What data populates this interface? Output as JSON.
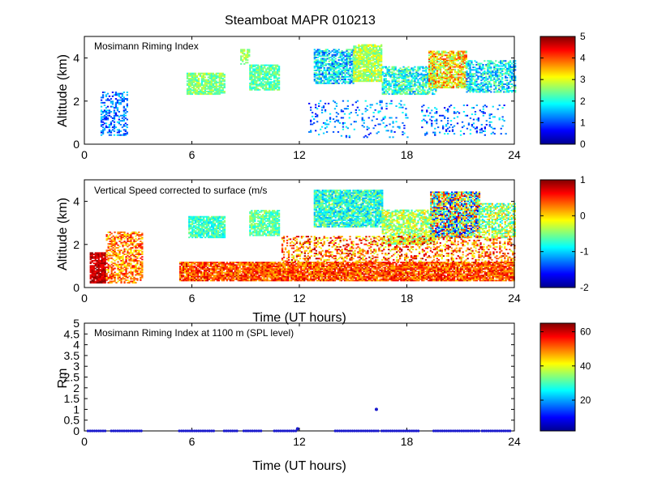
{
  "chart_data": {
    "title": "Steamboat MAPR 010213",
    "panels": [
      {
        "type": "heatmap",
        "annotation": "Mosimann Riming Index",
        "xlabel": "",
        "ylabel": "Altitude (km)",
        "xlim": [
          0,
          24
        ],
        "ylim": [
          0,
          5
        ],
        "xticks": [
          0,
          6,
          12,
          18,
          24
        ],
        "yticks": [
          0,
          2,
          4
        ],
        "colorbar": {
          "min": 0,
          "max": 5,
          "ticks": [
            0,
            1,
            2,
            3,
            4,
            5
          ]
        },
        "regions": [
          {
            "t": [
              0.9,
              2.4
            ],
            "z": [
              0.4,
              2.4
            ],
            "v": [
              0.5,
              1.8
            ],
            "d": 0.35
          },
          {
            "t": [
              5.7,
              7.8
            ],
            "z": [
              2.3,
              3.3
            ],
            "v": [
              2.0,
              3.0
            ],
            "d": 0.85
          },
          {
            "t": [
              9.2,
              10.9
            ],
            "z": [
              2.5,
              3.7
            ],
            "v": [
              1.8,
              2.8
            ],
            "d": 0.8
          },
          {
            "t": [
              8.7,
              9.2
            ],
            "z": [
              3.7,
              4.4
            ],
            "v": [
              2.3,
              3.0
            ],
            "d": 0.6
          },
          {
            "t": [
              12.8,
              15.0
            ],
            "z": [
              2.8,
              4.4
            ],
            "v": [
              0.8,
              2.6
            ],
            "d": 0.7
          },
          {
            "t": [
              15.0,
              16.6
            ],
            "z": [
              2.9,
              4.6
            ],
            "v": [
              2.2,
              3.3
            ],
            "d": 0.85
          },
          {
            "t": [
              16.6,
              19.6
            ],
            "z": [
              2.3,
              3.6
            ],
            "v": [
              1.2,
              2.8
            ],
            "d": 0.65
          },
          {
            "t": [
              19.2,
              21.3
            ],
            "z": [
              2.6,
              4.3
            ],
            "v": [
              2.3,
              4.2
            ],
            "d": 0.75
          },
          {
            "t": [
              21.3,
              24.0
            ],
            "z": [
              2.4,
              3.9
            ],
            "v": [
              1.0,
              2.6
            ],
            "d": 0.6
          },
          {
            "t": [
              12.5,
              18.0
            ],
            "z": [
              0.3,
              2.0
            ],
            "v": [
              0.6,
              2.0
            ],
            "d": 0.12
          },
          {
            "t": [
              18.8,
              23.5
            ],
            "z": [
              0.4,
              1.8
            ],
            "v": [
              0.5,
              2.0
            ],
            "d": 0.14
          }
        ]
      },
      {
        "type": "heatmap",
        "annotation": "Vertical Speed corrected to surface (m/s",
        "xlabel": "Time (UT hours)",
        "ylabel": "Altitude (km)",
        "xlim": [
          0,
          24
        ],
        "ylim": [
          0,
          5
        ],
        "xticks": [
          0,
          6,
          12,
          18,
          24
        ],
        "yticks": [
          0,
          2,
          4
        ],
        "colorbar": {
          "min": -2,
          "max": 1,
          "ticks": [
            1,
            0,
            -1,
            -2
          ]
        },
        "regions": [
          {
            "t": [
              0.3,
              1.2
            ],
            "z": [
              0.2,
              1.6
            ],
            "v": [
              0.6,
              1.0
            ],
            "d": 0.9
          },
          {
            "t": [
              1.2,
              3.2
            ],
            "z": [
              0.2,
              2.6
            ],
            "v": [
              -0.2,
              0.7
            ],
            "d": 0.55
          },
          {
            "t": [
              5.3,
              24.0
            ],
            "z": [
              0.3,
              1.2
            ],
            "v": [
              0.0,
              0.8
            ],
            "d": 0.9
          },
          {
            "t": [
              5.8,
              7.8
            ],
            "z": [
              2.3,
              3.3
            ],
            "v": [
              -1.0,
              -0.4
            ],
            "d": 0.85
          },
          {
            "t": [
              9.2,
              10.9
            ],
            "z": [
              2.4,
              3.6
            ],
            "v": [
              -0.9,
              -0.3
            ],
            "d": 0.8
          },
          {
            "t": [
              12.8,
              16.6
            ],
            "z": [
              2.8,
              4.5
            ],
            "v": [
              -1.2,
              -0.3
            ],
            "d": 0.85
          },
          {
            "t": [
              16.6,
              19.5
            ],
            "z": [
              2.0,
              3.6
            ],
            "v": [
              -0.8,
              0.1
            ],
            "d": 0.7
          },
          {
            "t": [
              19.3,
              22.0
            ],
            "z": [
              2.3,
              4.4
            ],
            "v": [
              -1.8,
              0.7
            ],
            "d": 0.8
          },
          {
            "t": [
              22.0,
              24.0
            ],
            "z": [
              2.3,
              3.9
            ],
            "v": [
              -1.0,
              0.2
            ],
            "d": 0.6
          },
          {
            "t": [
              11.0,
              24.0
            ],
            "z": [
              1.2,
              2.4
            ],
            "v": [
              -0.3,
              0.9
            ],
            "d": 0.35
          }
        ]
      },
      {
        "type": "scatter",
        "annotation": "Mosimann Riming Index at 1100 m (SPL level)",
        "xlabel": "Time (UT hours)",
        "ylabel": "Rm",
        "xlim": [
          0,
          24
        ],
        "ylim": [
          0,
          5
        ],
        "xticks": [
          0,
          6,
          12,
          18,
          24
        ],
        "yticks": [
          0,
          0.5,
          1,
          1.5,
          2,
          2.5,
          3,
          3.5,
          4,
          4.5,
          5
        ],
        "yticklabels": [
          "0",
          "0.5",
          "1",
          "1.5",
          "2",
          "2.5",
          "3",
          "3.5",
          "4",
          "4.5",
          "5"
        ],
        "colorbar": {
          "min": 2,
          "max": 65,
          "ticks": [
            20,
            40,
            60
          ]
        },
        "zero_segments": [
          [
            0.2,
            1.2
          ],
          [
            1.5,
            3.3
          ],
          [
            5.3,
            7.3
          ],
          [
            7.8,
            8.6
          ],
          [
            8.9,
            9.9
          ],
          [
            10.6,
            11.9
          ],
          [
            14.0,
            16.4
          ],
          [
            16.6,
            18.7
          ],
          [
            19.5,
            22.1
          ],
          [
            22.2,
            23.8
          ]
        ],
        "points": [
          {
            "x": 16.3,
            "y": 1.0
          },
          {
            "x": 11.9,
            "y": 0.1
          }
        ]
      }
    ]
  }
}
